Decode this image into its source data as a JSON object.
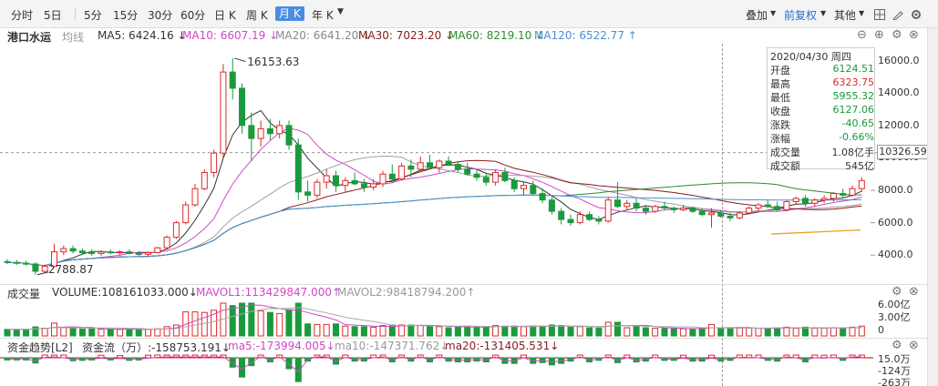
{
  "toolbar": {
    "periods": [
      "分时",
      "5日",
      "5分",
      "15分",
      "30分",
      "60分",
      "日 K",
      "周 K",
      "月 K",
      "年 K"
    ],
    "active_period": "月 K",
    "overlay_label": "叠加",
    "adjust_label": "前复权",
    "other_label": "其他"
  },
  "main_legend": {
    "stock_name": "港口水运",
    "avg_label": "均线",
    "ma5": "MA5: 6424.16 ↓",
    "ma10": "MA10: 6607.19 ↓",
    "ma20": "MA20: 6641.20 ↓",
    "ma30": "MA30: 7023.20 ↓",
    "ma60": "MA60: 8219.10 ↓",
    "ma120": "MA120: 6522.77 ↑"
  },
  "price_axis": [
    "16000.0",
    "14000.0",
    "12000.0",
    "10000.0",
    "8000.0",
    "6000.0",
    "4000.0"
  ],
  "annotations": {
    "high": "16153.63",
    "low": "2788.87"
  },
  "crosshair_price": "10326.59",
  "tooltip": {
    "date": "2020/04/30 周四",
    "rows": [
      {
        "label": "开盘",
        "value": "6124.51",
        "color": "g"
      },
      {
        "label": "最高",
        "value": "6323.75",
        "color": "r"
      },
      {
        "label": "最低",
        "value": "5955.32",
        "color": "g"
      },
      {
        "label": "收盘",
        "value": "6127.06",
        "color": "g"
      },
      {
        "label": "涨跌",
        "value": "-40.65",
        "color": "g"
      },
      {
        "label": "涨幅",
        "value": "-0.66%",
        "color": "g"
      },
      {
        "label": "成交量",
        "value": "1.08亿手",
        "color": "k"
      },
      {
        "label": "成交额",
        "value": "545亿",
        "color": "k"
      }
    ]
  },
  "volume_legend": {
    "title": "成交量",
    "volume": "VOLUME:108161033.000↓",
    "mavol1": "MAVOL1:113429847.000↑",
    "mavol2": "MAVOL2:98418794.200↑"
  },
  "volume_axis": [
    "6.00亿",
    "3.00亿",
    "0"
  ],
  "fund_legend": {
    "title": "资金趋势[L2]",
    "flow": "资金流（万）:-158753.191↓",
    "ma5": "ma5:-173994.005↓",
    "ma10": "ma10:-147371.762↓",
    "ma20": "ma20:-131405.531↓"
  },
  "fund_axis": [
    "15.0万",
    "-124万",
    "-263万"
  ],
  "colors": {
    "up": "#e02828",
    "down": "#1a9a3c",
    "ma5": "#333333",
    "ma10": "#d048c8",
    "ma20": "#a0a0a0",
    "ma30": "#8b1a1a",
    "ma60": "#2f8a2f",
    "ma120": "#4a8fd6",
    "extra": "#f0a020"
  },
  "chart_data": {
    "type": "candlestick",
    "y_range": [
      3000,
      16600
    ],
    "candles": [
      [
        3600,
        3750,
        3450,
        3550
      ],
      [
        3550,
        3700,
        3400,
        3500
      ],
      [
        3500,
        3650,
        3350,
        3450
      ],
      [
        3450,
        3550,
        2789,
        3000
      ],
      [
        3000,
        3400,
        2900,
        3300
      ],
      [
        3300,
        4700,
        3250,
        4200
      ],
      [
        4200,
        4600,
        4000,
        4400
      ],
      [
        4400,
        4600,
        4100,
        4250
      ],
      [
        4250,
        4400,
        4050,
        4150
      ],
      [
        4150,
        4350,
        3950,
        4100
      ],
      [
        4100,
        4300,
        3950,
        4200
      ],
      [
        4200,
        4350,
        4050,
        4150
      ],
      [
        4150,
        4300,
        4000,
        4200
      ],
      [
        4200,
        4350,
        4050,
        4100
      ],
      [
        4100,
        4250,
        3950,
        4050
      ],
      [
        4050,
        4200,
        3900,
        4150
      ],
      [
        4150,
        4500,
        4100,
        4450
      ],
      [
        4450,
        5200,
        4400,
        5100
      ],
      [
        5100,
        6100,
        5000,
        6000
      ],
      [
        6000,
        7300,
        5900,
        7100
      ],
      [
        7100,
        8400,
        7000,
        8100
      ],
      [
        8100,
        9300,
        8000,
        9100
      ],
      [
        9100,
        10500,
        8800,
        10300
      ],
      [
        10300,
        15800,
        10000,
        15300
      ],
      [
        15300,
        16154,
        13600,
        14300
      ],
      [
        14300,
        14600,
        11500,
        12000
      ],
      [
        12000,
        12800,
        9800,
        11200
      ],
      [
        11200,
        12300,
        10700,
        11800
      ],
      [
        11800,
        12400,
        11100,
        11500
      ],
      [
        11500,
        12300,
        11200,
        12000
      ],
      [
        12000,
        12300,
        10500,
        10800
      ],
      [
        10800,
        11200,
        7400,
        7900
      ],
      [
        7900,
        8600,
        7300,
        7700
      ],
      [
        7700,
        8700,
        7500,
        8500
      ],
      [
        8500,
        9300,
        8100,
        8900
      ],
      [
        8900,
        9200,
        7900,
        8300
      ],
      [
        8300,
        8800,
        7900,
        8600
      ],
      [
        8600,
        9100,
        8300,
        8400
      ],
      [
        8400,
        8700,
        7900,
        8200
      ],
      [
        8200,
        8700,
        8000,
        8400
      ],
      [
        8400,
        9200,
        8200,
        9000
      ],
      [
        9000,
        9600,
        8500,
        8700
      ],
      [
        8700,
        9700,
        8600,
        9500
      ],
      [
        9500,
        9900,
        8800,
        9300
      ],
      [
        9300,
        10100,
        9100,
        9700
      ],
      [
        9700,
        10200,
        9300,
        9400
      ],
      [
        9400,
        9900,
        9100,
        9800
      ],
      [
        9800,
        10100,
        9500,
        9600
      ],
      [
        9600,
        9800,
        9100,
        9300
      ],
      [
        9300,
        9700,
        8900,
        9000
      ],
      [
        9000,
        9300,
        8600,
        8800
      ],
      [
        8800,
        9100,
        8300,
        8500
      ],
      [
        8500,
        9300,
        8300,
        9100
      ],
      [
        9100,
        9400,
        8500,
        8600
      ],
      [
        8600,
        8800,
        7900,
        8100
      ],
      [
        8100,
        8500,
        7700,
        8300
      ],
      [
        8300,
        8600,
        7700,
        7800
      ],
      [
        7800,
        8100,
        7200,
        7400
      ],
      [
        7400,
        7600,
        6500,
        6700
      ],
      [
        6700,
        6900,
        5900,
        6200
      ],
      [
        6200,
        6500,
        5800,
        6000
      ],
      [
        6000,
        6700,
        5900,
        6500
      ],
      [
        6500,
        6700,
        6100,
        6200
      ],
      [
        6200,
        6400,
        5900,
        6100
      ],
      [
        6100,
        7600,
        6000,
        7400
      ],
      [
        7400,
        8500,
        6900,
        7000
      ],
      [
        7000,
        7400,
        6800,
        7200
      ],
      [
        7200,
        7500,
        6700,
        6900
      ],
      [
        6900,
        7100,
        6500,
        6700
      ],
      [
        6700,
        7100,
        6600,
        7000
      ],
      [
        7000,
        7300,
        6800,
        6900
      ],
      [
        6900,
        7000,
        6600,
        6800
      ],
      [
        6800,
        7100,
        6700,
        6900
      ],
      [
        6900,
        7000,
        6600,
        6700
      ],
      [
        6700,
        6900,
        6400,
        6500
      ],
      [
        6500,
        6900,
        5700,
        6600
      ],
      [
        6600,
        6800,
        6300,
        6400
      ],
      [
        6400,
        6600,
        6100,
        6300
      ],
      [
        6300,
        6700,
        6200,
        6600
      ],
      [
        6600,
        7000,
        6500,
        6900
      ],
      [
        6900,
        7200,
        6700,
        7100
      ],
      [
        7100,
        7400,
        6900,
        7000
      ],
      [
        7000,
        7300,
        6700,
        6800
      ],
      [
        6800,
        7400,
        6700,
        7300
      ],
      [
        7300,
        7600,
        7100,
        7500
      ],
      [
        7500,
        7700,
        7000,
        7200
      ],
      [
        7200,
        7500,
        7000,
        7400
      ],
      [
        7400,
        7700,
        7200,
        7500
      ],
      [
        7500,
        7900,
        7300,
        7800
      ],
      [
        7800,
        8100,
        7500,
        7700
      ],
      [
        7700,
        8300,
        7600,
        8100
      ],
      [
        8100,
        8800,
        7900,
        8600
      ]
    ],
    "x_dash_index": 78
  }
}
